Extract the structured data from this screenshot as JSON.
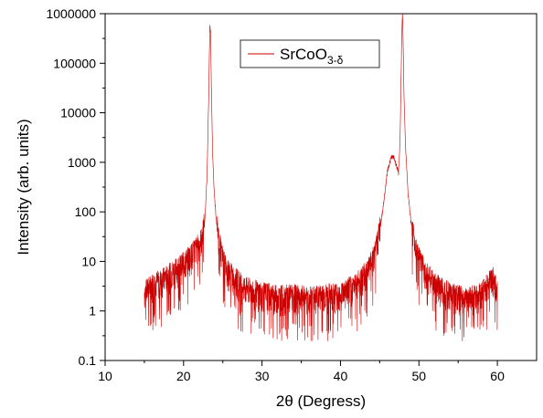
{
  "chart_data": {
    "type": "line",
    "title": "",
    "xlabel": "2θ (Degress)",
    "ylabel": "Intensity (arb. units)",
    "xlim": [
      10,
      65
    ],
    "ylim": [
      0.1,
      1000000
    ],
    "y_scale": "log",
    "x_ticks": [
      "10",
      "20",
      "30",
      "40",
      "50",
      "60"
    ],
    "x_tick_values": [
      10,
      20,
      30,
      40,
      50,
      60
    ],
    "y_ticks": [
      "0.1",
      "1",
      "10",
      "100",
      "1000",
      "10000",
      "100000",
      "1000000"
    ],
    "y_tick_values": [
      0.1,
      1,
      10,
      100,
      1000,
      10000,
      100000,
      1000000
    ],
    "grid": false,
    "legend_position": "top-center",
    "series": [
      {
        "name_main": "SrCoO",
        "name_sub": "3-δ",
        "color": "#cc0000",
        "x": [
          15.0,
          16.0,
          17.0,
          18.0,
          19.0,
          20.0,
          21.0,
          21.8,
          22.3,
          22.7,
          23.0,
          23.2,
          23.35,
          23.45,
          23.55,
          23.7,
          23.9,
          24.2,
          24.6,
          25.0,
          25.5,
          26.5,
          28.0,
          30.0,
          32.0,
          34.0,
          36.0,
          38.0,
          40.0,
          42.0,
          43.5,
          44.5,
          45.0,
          45.5,
          46.0,
          46.5,
          46.8,
          47.1,
          47.4,
          47.6,
          47.8,
          47.9,
          48.0,
          48.1,
          48.3,
          48.6,
          49.0,
          49.5,
          50.0,
          51.0,
          52.0,
          54.0,
          56.0,
          58.0,
          59.0,
          59.5,
          60.0
        ],
        "y": [
          2,
          3,
          3.5,
          4.5,
          6,
          8,
          12,
          18,
          25,
          60,
          600,
          20000,
          600000,
          400000,
          30000,
          1500,
          250,
          60,
          20,
          10,
          6,
          4,
          2.5,
          2,
          1.7,
          1.8,
          1.6,
          1.8,
          2,
          3,
          6,
          15,
          40,
          150,
          700,
          1300,
          1250,
          900,
          600,
          3000,
          300000,
          1000000,
          200000,
          20000,
          2000,
          250,
          60,
          20,
          10,
          5,
          3,
          2,
          1.5,
          2,
          3.5,
          4,
          2
        ]
      }
    ]
  }
}
